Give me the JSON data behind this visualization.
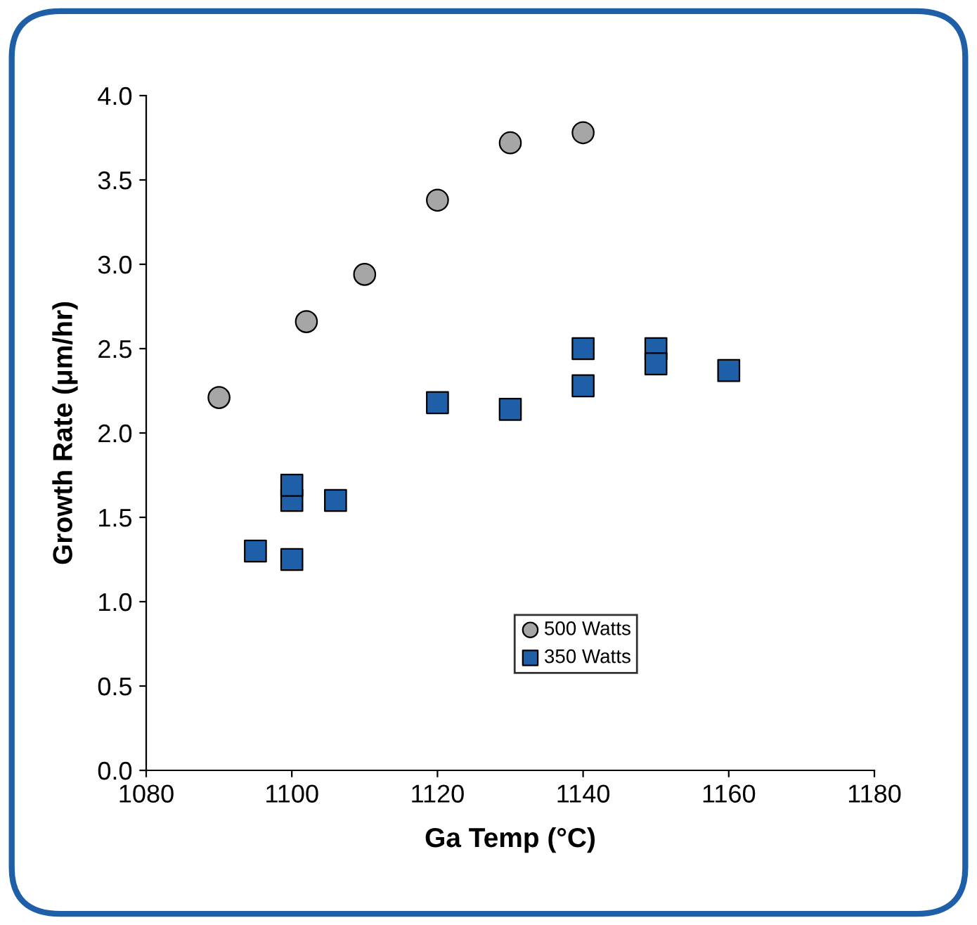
{
  "chart_data": {
    "type": "scatter",
    "xlabel": "Ga Temp (°C)",
    "ylabel": "Growth Rate (μm/hr)",
    "xlim": [
      1080,
      1180
    ],
    "xticks": [
      1080,
      1100,
      1120,
      1140,
      1160,
      1180
    ],
    "ylim": [
      0,
      4
    ],
    "yticks": [
      {
        "value": 0,
        "label": "0.0"
      },
      {
        "value": 0.5,
        "label": "0.5"
      },
      {
        "value": 1,
        "label": "1.0"
      },
      {
        "value": 1.5,
        "label": "1.5"
      },
      {
        "value": 2,
        "label": "2.0"
      },
      {
        "value": 2.5,
        "label": "2.5"
      },
      {
        "value": 3,
        "label": "3.0"
      },
      {
        "value": 3.5,
        "label": "3.5"
      },
      {
        "value": 4,
        "label": "4.0"
      }
    ],
    "legend": "bottom",
    "series": [
      {
        "name": "500 Watts",
        "color": "#a6a6a6",
        "marker": "circle",
        "x": [
          1090,
          1102,
          1110,
          1120,
          1130,
          1140
        ],
        "values": [
          2.21,
          2.66,
          2.94,
          3.38,
          3.72,
          3.78
        ]
      },
      {
        "name": "350 Watts",
        "color": "#1f5fa8",
        "marker": "square",
        "x": [
          1095,
          1100,
          1100,
          1100,
          1106,
          1120,
          1130,
          1140,
          1140,
          1150,
          1150,
          1160
        ],
        "values": [
          1.3,
          1.25,
          1.6,
          1.69,
          1.6,
          2.18,
          2.14,
          2.28,
          2.5,
          2.5,
          2.41,
          2.37
        ]
      }
    ]
  }
}
